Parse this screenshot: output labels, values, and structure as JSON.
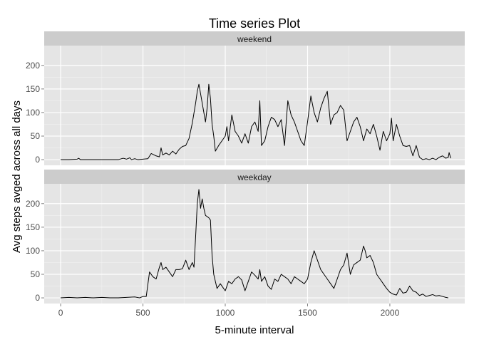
{
  "chart_data": {
    "type": "line",
    "title": "Time series Plot",
    "xlabel": "5-minute interval",
    "ylabel": "Avg steps avged across all days",
    "xlim": [
      -100,
      2455
    ],
    "ylim": [
      -12,
      242
    ],
    "x_ticks": [
      0,
      500,
      1000,
      1500,
      2000
    ],
    "y_ticks": [
      0,
      50,
      100,
      150,
      200
    ],
    "grid": true,
    "background": "#e5e5e5",
    "strip_color": "#cccccc",
    "line_color": "#000000",
    "panels": [
      {
        "label": "weekend",
        "points": [
          [
            0,
            0
          ],
          [
            50,
            0
          ],
          [
            100,
            1
          ],
          [
            110,
            3
          ],
          [
            120,
            0
          ],
          [
            200,
            0
          ],
          [
            300,
            0
          ],
          [
            350,
            0
          ],
          [
            380,
            3
          ],
          [
            400,
            1
          ],
          [
            420,
            4
          ],
          [
            430,
            0
          ],
          [
            450,
            2
          ],
          [
            470,
            0
          ],
          [
            500,
            1
          ],
          [
            530,
            2
          ],
          [
            550,
            13
          ],
          [
            580,
            8
          ],
          [
            600,
            6
          ],
          [
            610,
            25
          ],
          [
            620,
            10
          ],
          [
            640,
            14
          ],
          [
            660,
            10
          ],
          [
            680,
            18
          ],
          [
            700,
            12
          ],
          [
            720,
            22
          ],
          [
            740,
            28
          ],
          [
            760,
            30
          ],
          [
            780,
            45
          ],
          [
            800,
            78
          ],
          [
            820,
            120
          ],
          [
            830,
            145
          ],
          [
            840,
            160
          ],
          [
            850,
            140
          ],
          [
            860,
            120
          ],
          [
            870,
            100
          ],
          [
            880,
            80
          ],
          [
            890,
            110
          ],
          [
            900,
            160
          ],
          [
            910,
            130
          ],
          [
            920,
            75
          ],
          [
            930,
            50
          ],
          [
            940,
            18
          ],
          [
            960,
            30
          ],
          [
            980,
            40
          ],
          [
            1000,
            50
          ],
          [
            1010,
            70
          ],
          [
            1020,
            40
          ],
          [
            1040,
            95
          ],
          [
            1060,
            60
          ],
          [
            1080,
            50
          ],
          [
            1100,
            35
          ],
          [
            1120,
            55
          ],
          [
            1140,
            35
          ],
          [
            1160,
            70
          ],
          [
            1180,
            80
          ],
          [
            1200,
            60
          ],
          [
            1210,
            125
          ],
          [
            1220,
            30
          ],
          [
            1240,
            40
          ],
          [
            1260,
            70
          ],
          [
            1280,
            90
          ],
          [
            1300,
            85
          ],
          [
            1320,
            70
          ],
          [
            1340,
            85
          ],
          [
            1360,
            30
          ],
          [
            1380,
            125
          ],
          [
            1400,
            95
          ],
          [
            1420,
            80
          ],
          [
            1440,
            60
          ],
          [
            1460,
            40
          ],
          [
            1480,
            30
          ],
          [
            1500,
            80
          ],
          [
            1520,
            135
          ],
          [
            1540,
            100
          ],
          [
            1560,
            80
          ],
          [
            1580,
            110
          ],
          [
            1600,
            130
          ],
          [
            1620,
            145
          ],
          [
            1640,
            75
          ],
          [
            1660,
            95
          ],
          [
            1680,
            100
          ],
          [
            1700,
            115
          ],
          [
            1720,
            105
          ],
          [
            1740,
            40
          ],
          [
            1760,
            60
          ],
          [
            1780,
            80
          ],
          [
            1800,
            90
          ],
          [
            1820,
            70
          ],
          [
            1840,
            40
          ],
          [
            1860,
            65
          ],
          [
            1880,
            55
          ],
          [
            1900,
            75
          ],
          [
            1920,
            50
          ],
          [
            1940,
            20
          ],
          [
            1960,
            60
          ],
          [
            1980,
            40
          ],
          [
            2000,
            55
          ],
          [
            2010,
            88
          ],
          [
            2020,
            40
          ],
          [
            2040,
            75
          ],
          [
            2060,
            50
          ],
          [
            2080,
            30
          ],
          [
            2100,
            28
          ],
          [
            2120,
            30
          ],
          [
            2140,
            8
          ],
          [
            2160,
            30
          ],
          [
            2180,
            5
          ],
          [
            2200,
            0
          ],
          [
            2220,
            2
          ],
          [
            2240,
            0
          ],
          [
            2260,
            3
          ],
          [
            2280,
            0
          ],
          [
            2300,
            5
          ],
          [
            2320,
            8
          ],
          [
            2340,
            3
          ],
          [
            2355,
            5
          ],
          [
            2360,
            15
          ],
          [
            2370,
            3
          ]
        ]
      },
      {
        "label": "weekday",
        "points": [
          [
            0,
            0
          ],
          [
            50,
            1
          ],
          [
            100,
            0
          ],
          [
            150,
            1
          ],
          [
            200,
            0
          ],
          [
            250,
            1
          ],
          [
            300,
            0
          ],
          [
            350,
            0
          ],
          [
            400,
            1
          ],
          [
            450,
            2
          ],
          [
            480,
            0
          ],
          [
            500,
            3
          ],
          [
            520,
            3
          ],
          [
            540,
            55
          ],
          [
            560,
            45
          ],
          [
            580,
            40
          ],
          [
            600,
            65
          ],
          [
            610,
            75
          ],
          [
            620,
            60
          ],
          [
            640,
            65
          ],
          [
            660,
            55
          ],
          [
            680,
            45
          ],
          [
            700,
            60
          ],
          [
            720,
            60
          ],
          [
            740,
            62
          ],
          [
            760,
            80
          ],
          [
            780,
            60
          ],
          [
            800,
            75
          ],
          [
            810,
            65
          ],
          [
            820,
            130
          ],
          [
            830,
            200
          ],
          [
            840,
            230
          ],
          [
            850,
            190
          ],
          [
            860,
            210
          ],
          [
            870,
            190
          ],
          [
            880,
            175
          ],
          [
            900,
            170
          ],
          [
            910,
            165
          ],
          [
            920,
            90
          ],
          [
            930,
            50
          ],
          [
            950,
            20
          ],
          [
            970,
            30
          ],
          [
            990,
            20
          ],
          [
            1000,
            15
          ],
          [
            1010,
            25
          ],
          [
            1020,
            35
          ],
          [
            1040,
            30
          ],
          [
            1060,
            40
          ],
          [
            1080,
            45
          ],
          [
            1100,
            38
          ],
          [
            1120,
            15
          ],
          [
            1140,
            35
          ],
          [
            1160,
            55
          ],
          [
            1180,
            48
          ],
          [
            1200,
            40
          ],
          [
            1210,
            60
          ],
          [
            1220,
            35
          ],
          [
            1240,
            45
          ],
          [
            1260,
            25
          ],
          [
            1280,
            18
          ],
          [
            1300,
            40
          ],
          [
            1320,
            35
          ],
          [
            1340,
            50
          ],
          [
            1360,
            45
          ],
          [
            1380,
            40
          ],
          [
            1400,
            30
          ],
          [
            1420,
            45
          ],
          [
            1440,
            40
          ],
          [
            1460,
            35
          ],
          [
            1480,
            30
          ],
          [
            1500,
            40
          ],
          [
            1520,
            75
          ],
          [
            1540,
            100
          ],
          [
            1560,
            80
          ],
          [
            1580,
            60
          ],
          [
            1600,
            50
          ],
          [
            1620,
            40
          ],
          [
            1640,
            30
          ],
          [
            1660,
            20
          ],
          [
            1680,
            40
          ],
          [
            1700,
            60
          ],
          [
            1720,
            70
          ],
          [
            1740,
            95
          ],
          [
            1760,
            50
          ],
          [
            1780,
            70
          ],
          [
            1800,
            75
          ],
          [
            1820,
            80
          ],
          [
            1840,
            110
          ],
          [
            1850,
            100
          ],
          [
            1860,
            85
          ],
          [
            1880,
            90
          ],
          [
            1900,
            75
          ],
          [
            1920,
            50
          ],
          [
            1940,
            40
          ],
          [
            1960,
            30
          ],
          [
            1980,
            20
          ],
          [
            2000,
            12
          ],
          [
            2020,
            8
          ],
          [
            2040,
            6
          ],
          [
            2060,
            20
          ],
          [
            2080,
            10
          ],
          [
            2100,
            12
          ],
          [
            2120,
            25
          ],
          [
            2140,
            15
          ],
          [
            2160,
            12
          ],
          [
            2180,
            5
          ],
          [
            2200,
            8
          ],
          [
            2220,
            3
          ],
          [
            2240,
            5
          ],
          [
            2260,
            7
          ],
          [
            2280,
            4
          ],
          [
            2300,
            5
          ],
          [
            2320,
            3
          ],
          [
            2340,
            1
          ],
          [
            2355,
            0
          ]
        ]
      }
    ]
  }
}
